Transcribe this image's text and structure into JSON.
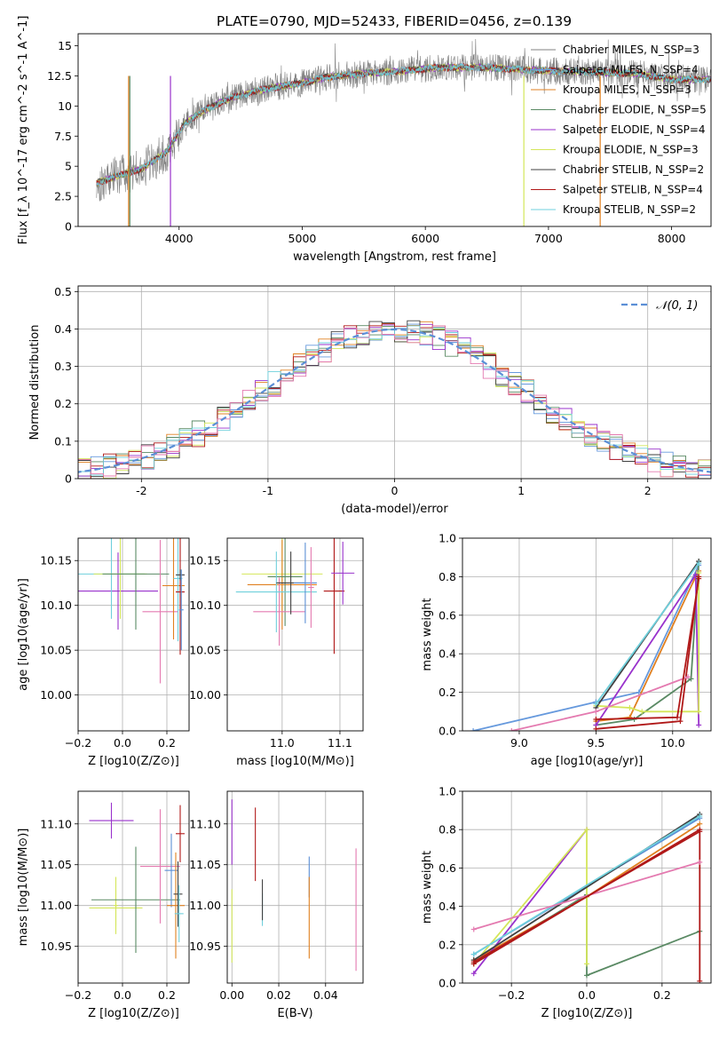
{
  "figure": {
    "title": "PLATE=0790, MJD=52433, FIBERID=0456, z=0.139"
  },
  "chart_data": [
    {
      "id": "spectrum",
      "type": "line",
      "xlabel": "wavelength [Angstrom, rest frame]",
      "ylabel": "Flux [f_λ 10^-17 erg cm^-2 s^-1 A^-1]",
      "xlim": [
        3180,
        8320
      ],
      "ylim": [
        0,
        16
      ],
      "xticks": [
        4000,
        5000,
        6000,
        7000,
        8000
      ],
      "yticks": [
        0.0,
        2.5,
        5.0,
        7.5,
        10.0,
        12.5,
        15.0
      ],
      "grid": false,
      "legend_position": "top-right",
      "envelope_points": [
        [
          3330,
          3.6
        ],
        [
          3500,
          4.2
        ],
        [
          3700,
          4.8
        ],
        [
          3900,
          6.2
        ],
        [
          4050,
          8.6
        ],
        [
          4200,
          9.6
        ],
        [
          4400,
          10.6
        ],
        [
          4600,
          11.2
        ],
        [
          4800,
          11.6
        ],
        [
          5000,
          11.9
        ],
        [
          5200,
          12.4
        ],
        [
          5500,
          12.7
        ],
        [
          5800,
          12.9
        ],
        [
          6100,
          13.2
        ],
        [
          6500,
          13.2
        ],
        [
          6800,
          13.0
        ],
        [
          7100,
          12.9
        ],
        [
          7400,
          12.8
        ],
        [
          7700,
          12.7
        ],
        [
          8000,
          12.2
        ],
        [
          8320,
          12.2
        ]
      ],
      "series": [
        {
          "name": "Chabrier MILES, N_SSP=3",
          "color": "#808080"
        },
        {
          "name": "Salpeter MILES, N_SSP=4",
          "color": "#6699dd"
        },
        {
          "name": "Kroupa MILES, N_SSP=3",
          "color": "#e08020"
        },
        {
          "name": "Chabrier ELODIE, N_SSP=5",
          "color": "#5a8a64"
        },
        {
          "name": "Salpeter ELODIE, N_SSP=4",
          "color": "#9932cc"
        },
        {
          "name": "Kroupa ELODIE, N_SSP=3",
          "color": "#d4e65a"
        },
        {
          "name": "Chabrier STELIB, N_SSP=2",
          "color": "#404040"
        },
        {
          "name": "Salpeter STELIB, N_SSP=4",
          "color": "#b01818"
        },
        {
          "name": "Kroupa STELIB, N_SSP=2",
          "color": "#6fd0dc"
        }
      ]
    },
    {
      "id": "residuals",
      "type": "line",
      "xlabel": "(data-model)/error",
      "ylabel": "Normed distribution",
      "xlim": [
        -2.5,
        2.5
      ],
      "ylim": [
        0,
        0.515
      ],
      "xticks": [
        -2,
        -1,
        0,
        1,
        2
      ],
      "yticks": [
        0.0,
        0.1,
        0.2,
        0.3,
        0.4,
        0.5
      ],
      "grid": true,
      "legend_position": "top-right",
      "legend_label": "𝒩(0, 1)",
      "gaussian": {
        "mean": 0,
        "sigma": 1,
        "color": "#5b8fd6"
      },
      "histogram_colors": [
        "#6699dd",
        "#e08020",
        "#5a8a64",
        "#9932cc",
        "#d4e65a",
        "#404040",
        "#b01818",
        "#6fd0dc",
        "#e47ab0"
      ]
    },
    {
      "id": "age-vs-Z",
      "type": "scatter",
      "xlabel": "Z [log10(Z/Z⊙)]",
      "ylabel": "age  [log10(age/yr)]",
      "xlim": [
        -0.2,
        0.3
      ],
      "ylim": [
        9.96,
        10.175
      ],
      "xticks": [
        -0.2,
        0.0,
        0.2
      ],
      "xticklabels": [
        "−0.2",
        "0.0",
        "0.2"
      ],
      "yticks": [
        10.0,
        10.05,
        10.1,
        10.15
      ],
      "yticklabels": [
        "10.00",
        "10.05",
        "10.10",
        "10.15"
      ],
      "grid": true,
      "points": [
        {
          "x": -0.02,
          "y": 10.116,
          "xerr": 0.18,
          "yerr": 0.043,
          "color": "#9932cc"
        },
        {
          "x": -0.05,
          "y": 10.135,
          "xerr": 0.15,
          "yerr": 0.05,
          "color": "#6fd0dc"
        },
        {
          "x": -0.01,
          "y": 10.135,
          "xerr": 0.12,
          "yerr": 0.05,
          "color": "#d4e65a"
        },
        {
          "x": 0.06,
          "y": 10.135,
          "xerr": 0.15,
          "yerr": 0.062,
          "color": "#5a8a64"
        },
        {
          "x": 0.17,
          "y": 10.093,
          "xerr": 0.08,
          "yerr": 0.08,
          "color": "#e47ab0"
        },
        {
          "x": 0.23,
          "y": 10.122,
          "xerr": 0.05,
          "yerr": 0.06,
          "color": "#e08020"
        },
        {
          "x": 0.25,
          "y": 10.13,
          "xerr": 0.02,
          "yerr": 0.07,
          "color": "#6fd0dc"
        },
        {
          "x": 0.26,
          "y": 10.115,
          "xerr": 0.02,
          "yerr": 0.07,
          "color": "#b01818"
        },
        {
          "x": 0.26,
          "y": 10.134,
          "xerr": 0.02,
          "yerr": 0.006,
          "color": "#404040"
        },
        {
          "x": 0.265,
          "y": 10.095,
          "xerr": 0.01,
          "yerr": 0.045,
          "color": "#5b8fd6"
        }
      ]
    },
    {
      "id": "age-vs-mass",
      "type": "scatter",
      "xlabel": "mass [log10(M/M⊙)]",
      "ylabel": "",
      "xlim": [
        10.905,
        11.14
      ],
      "ylim": [
        9.96,
        10.175
      ],
      "xticks": [
        11.0,
        11.1
      ],
      "xticklabels": [
        "11.0",
        "11.1"
      ],
      "yticks": [
        10.0,
        10.05,
        10.1,
        10.15
      ],
      "yticklabels": [
        "10.00",
        "10.05",
        "10.10",
        "10.15"
      ],
      "grid": true,
      "points": [
        {
          "x": 11.0,
          "y": 10.135,
          "xerr": 0.07,
          "yerr": 0.04,
          "color": "#d4e65a"
        },
        {
          "x": 11.0,
          "y": 10.123,
          "xerr": 0.06,
          "yerr": 0.05,
          "color": "#e08020"
        },
        {
          "x": 11.005,
          "y": 10.132,
          "xerr": 0.03,
          "yerr": 0.055,
          "color": "#5a8a64"
        },
        {
          "x": 10.995,
          "y": 10.093,
          "xerr": 0.045,
          "yerr": 0.038,
          "color": "#e47ab0"
        },
        {
          "x": 10.99,
          "y": 10.115,
          "xerr": 0.07,
          "yerr": 0.045,
          "color": "#6fd0dc"
        },
        {
          "x": 11.015,
          "y": 10.125,
          "xerr": 0.025,
          "yerr": 0.035,
          "color": "#404040"
        },
        {
          "x": 11.04,
          "y": 10.125,
          "xerr": 0.02,
          "yerr": 0.045,
          "color": "#5b8fd6"
        },
        {
          "x": 11.05,
          "y": 10.12,
          "xerr": 0.005,
          "yerr": 0.045,
          "color": "#e47ab0"
        },
        {
          "x": 11.09,
          "y": 10.116,
          "xerr": 0.018,
          "yerr": 0.07,
          "color": "#b01818"
        },
        {
          "x": 11.105,
          "y": 10.136,
          "xerr": 0.02,
          "yerr": 0.035,
          "color": "#9932cc"
        }
      ]
    },
    {
      "id": "weight-vs-age",
      "type": "line",
      "xlabel": "age  [log10(age/yr)]",
      "ylabel": "mass weight",
      "xlim": [
        8.63,
        10.25
      ],
      "ylim": [
        0,
        1.0
      ],
      "xticks": [
        9.0,
        9.5,
        10.0
      ],
      "xticklabels": [
        "9.0",
        "9.5",
        "10.0"
      ],
      "yticks": [
        0.0,
        0.2,
        0.4,
        0.6,
        0.8,
        1.0
      ],
      "yticklabels": [
        "0.0",
        "0.2",
        "0.4",
        "0.6",
        "0.8",
        "1.0"
      ],
      "grid": true,
      "series": [
        {
          "color": "#6699dd",
          "x": [
            8.7,
            9.5,
            9.78,
            10.17
          ],
          "y": [
            0.0,
            0.15,
            0.2,
            0.86
          ]
        },
        {
          "color": "#e08020",
          "x": [
            9.5,
            9.72,
            10.15,
            10.17
          ],
          "y": [
            0.05,
            0.07,
            0.8,
            0.83
          ]
        },
        {
          "color": "#5a8a64",
          "x": [
            9.5,
            9.75,
            10.12,
            10.17
          ],
          "y": [
            0.03,
            0.06,
            0.27,
            0.88
          ]
        },
        {
          "color": "#9932cc",
          "x": [
            9.5,
            10.15,
            10.17
          ],
          "y": [
            0.03,
            0.81,
            0.03
          ]
        },
        {
          "color": "#d4e65a",
          "x": [
            9.5,
            9.72,
            9.8,
            10.17,
            10.17
          ],
          "y": [
            0.13,
            0.12,
            0.1,
            0.1,
            0.82
          ]
        },
        {
          "color": "#404040",
          "x": [
            9.5,
            10.17
          ],
          "y": [
            0.12,
            0.88
          ]
        },
        {
          "color": "#b01818",
          "x": [
            9.5,
            10.05,
            10.17
          ],
          "y": [
            0.01,
            0.05,
            0.8
          ]
        },
        {
          "color": "#6fd0dc",
          "x": [
            9.5,
            10.17
          ],
          "y": [
            0.14,
            0.87
          ]
        },
        {
          "color": "#e47ab0",
          "x": [
            8.95,
            9.5,
            10.1
          ],
          "y": [
            0.0,
            0.1,
            0.28
          ]
        },
        {
          "color": "#b01818",
          "x": [
            9.5,
            10.03,
            10.17
          ],
          "y": [
            0.06,
            0.07,
            0.79
          ]
        }
      ]
    },
    {
      "id": "mass-vs-Z",
      "type": "scatter",
      "xlabel": "Z [log10(Z/Z⊙)]",
      "ylabel": "mass [log10(M/M⊙)]",
      "xlim": [
        -0.2,
        0.3
      ],
      "ylim": [
        10.905,
        11.14
      ],
      "xticks": [
        -0.2,
        0.0,
        0.2
      ],
      "xticklabels": [
        "−0.2",
        "0.0",
        "0.2"
      ],
      "yticks": [
        10.95,
        11.0,
        11.05,
        11.1
      ],
      "yticklabels": [
        "10.95",
        "11.00",
        "11.05",
        "11.10"
      ],
      "grid": true,
      "points": [
        {
          "x": -0.05,
          "y": 11.104,
          "xerr": 0.1,
          "yerr": 0.022,
          "color": "#9932cc"
        },
        {
          "x": -0.03,
          "y": 10.997,
          "xerr": 0.12,
          "yerr": 0.022,
          "color": "#d4e65a"
        },
        {
          "x": -0.03,
          "y": 11.0,
          "xerr": 0.01,
          "yerr": 0.035,
          "color": "#d4e65a"
        },
        {
          "x": 0.06,
          "y": 11.007,
          "xerr": 0.2,
          "yerr": 0.065,
          "color": "#5a8a64"
        },
        {
          "x": 0.17,
          "y": 11.048,
          "xerr": 0.09,
          "yerr": 0.07,
          "color": "#e47ab0"
        },
        {
          "x": 0.22,
          "y": 11.043,
          "xerr": 0.03,
          "yerr": 0.045,
          "color": "#5b8fd6"
        },
        {
          "x": 0.24,
          "y": 11.0,
          "xerr": 0.04,
          "yerr": 0.065,
          "color": "#e08020"
        },
        {
          "x": 0.25,
          "y": 11.014,
          "xerr": 0.02,
          "yerr": 0.04,
          "color": "#404040"
        },
        {
          "x": 0.255,
          "y": 10.99,
          "xerr": 0.02,
          "yerr": 0.035,
          "color": "#6fd0dc"
        },
        {
          "x": 0.26,
          "y": 11.088,
          "xerr": 0.02,
          "yerr": 0.035,
          "color": "#b01818"
        }
      ]
    },
    {
      "id": "mass-vs-EBV",
      "type": "scatter",
      "xlabel": "E(B-V)",
      "ylabel": "",
      "xlim": [
        -0.002,
        0.056
      ],
      "ylim": [
        10.905,
        11.14
      ],
      "xticks": [
        0.0,
        0.02,
        0.04
      ],
      "xticklabels": [
        "0.00",
        "0.02",
        "0.04"
      ],
      "yticks": [
        10.95,
        11.0,
        11.05,
        11.1
      ],
      "yticklabels": [
        "10.95",
        "11.00",
        "11.05",
        "11.10"
      ],
      "grid": true,
      "points": [
        {
          "x": 0.0,
          "y": 11.09,
          "xerr": 0,
          "yerr": 0.04,
          "color": "#9932cc"
        },
        {
          "x": 0.0,
          "y": 10.975,
          "xerr": 0,
          "yerr": 0.045,
          "color": "#d4e65a"
        },
        {
          "x": 0.013,
          "y": 10.995,
          "xerr": 0,
          "yerr": 0.02,
          "color": "#6fd0dc"
        },
        {
          "x": 0.013,
          "y": 11.007,
          "xerr": 0,
          "yerr": 0.025,
          "color": "#404040"
        },
        {
          "x": 0.01,
          "y": 11.075,
          "xerr": 0,
          "yerr": 0.045,
          "color": "#b01818"
        },
        {
          "x": 0.033,
          "y": 11.035,
          "xerr": 0,
          "yerr": 0.025,
          "color": "#5b8fd6"
        },
        {
          "x": 0.033,
          "y": 10.985,
          "xerr": 0,
          "yerr": 0.05,
          "color": "#e08020"
        },
        {
          "x": 0.053,
          "y": 10.995,
          "xerr": 0,
          "yerr": 0.075,
          "color": "#e47ab0"
        }
      ]
    },
    {
      "id": "weight-vs-Z",
      "type": "line",
      "xlabel": "Z [log10(Z/Z⊙)]",
      "ylabel": "mass weight",
      "xlim": [
        -0.33,
        0.33
      ],
      "ylim": [
        0,
        1.0
      ],
      "xticks": [
        -0.2,
        0.0,
        0.2
      ],
      "xticklabels": [
        "−0.2",
        "0.0",
        "0.2"
      ],
      "yticks": [
        0.0,
        0.2,
        0.4,
        0.6,
        0.8,
        1.0
      ],
      "yticklabels": [
        "0.0",
        "0.2",
        "0.4",
        "0.6",
        "0.8",
        "1.0"
      ],
      "grid": true,
      "series": [
        {
          "color": "#5b8fd6",
          "x": [
            -0.3,
            0.3
          ],
          "y": [
            0.15,
            0.86
          ]
        },
        {
          "color": "#e08020",
          "x": [
            -0.3,
            0.0,
            0.3
          ],
          "y": [
            0.12,
            0.45,
            0.83
          ]
        },
        {
          "color": "#5a8a64",
          "x": [
            -0.3,
            0.0,
            0.0,
            0.3
          ],
          "y": [
            0.1,
            0.46,
            0.04,
            0.27
          ]
        },
        {
          "color": "#9932cc",
          "x": [
            -0.3,
            0.0
          ],
          "y": [
            0.05,
            0.8
          ]
        },
        {
          "color": "#d4e65a",
          "x": [
            -0.3,
            0.0,
            0.0
          ],
          "y": [
            0.1,
            0.8,
            0.1
          ]
        },
        {
          "color": "#404040",
          "x": [
            -0.3,
            0.3
          ],
          "y": [
            0.12,
            0.88
          ]
        },
        {
          "color": "#b01818",
          "x": [
            -0.3,
            0.3,
            0.3
          ],
          "y": [
            0.1,
            0.8,
            0.01
          ]
        },
        {
          "color": "#6fd0dc",
          "x": [
            -0.3,
            0.3
          ],
          "y": [
            0.15,
            0.87
          ]
        },
        {
          "color": "#e47ab0",
          "x": [
            -0.3,
            0.3
          ],
          "y": [
            0.28,
            0.63
          ]
        },
        {
          "color": "#b01818",
          "x": [
            -0.3,
            0.3
          ],
          "y": [
            0.11,
            0.79
          ]
        }
      ]
    }
  ]
}
